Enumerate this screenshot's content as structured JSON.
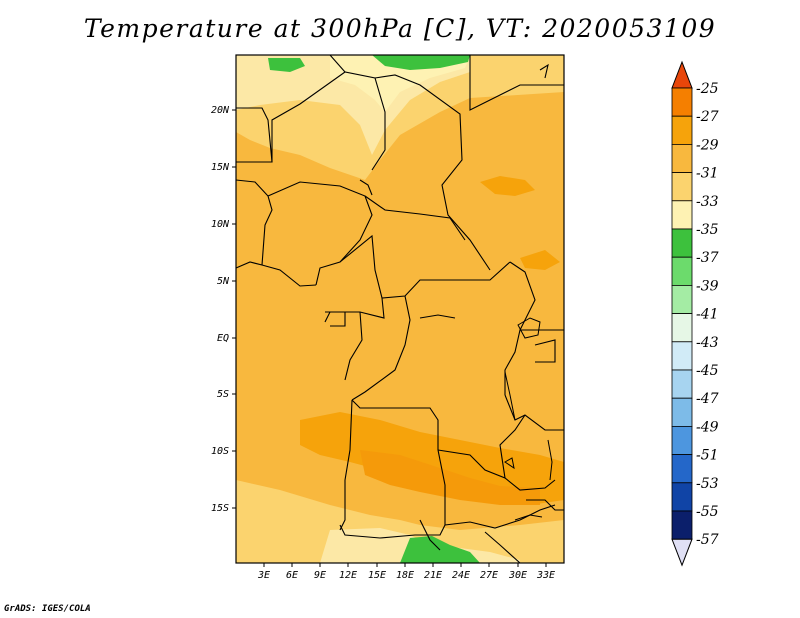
{
  "title": "Temperature at 300hPa [C], VT: 2020053109",
  "credit": "GrADS: IGES/COLA",
  "map": {
    "lat_labels": [
      "20N",
      "15N",
      "10N",
      "5N",
      "EQ",
      "5S",
      "10S",
      "15S"
    ],
    "lon_labels": [
      "3E",
      "6E",
      "9E",
      "12E",
      "15E",
      "18E",
      "21E",
      "24E",
      "27E",
      "30E",
      "33E"
    ]
  },
  "colorbar": {
    "labels": [
      "-25",
      "-27",
      "-29",
      "-31",
      "-33",
      "-35",
      "-37",
      "-39",
      "-41",
      "-43",
      "-45",
      "-47",
      "-49",
      "-51",
      "-53",
      "-55",
      "-57"
    ],
    "colors": [
      "#e8460a",
      "#f57f00",
      "#f6a30b",
      "#f8b83e",
      "#fbd36e",
      "#fef2b3",
      "#3dc13d",
      "#6cdb6c",
      "#a4eca4",
      "#e6f7e6",
      "#d1ebf7",
      "#a7d4f0",
      "#7dbbe8",
      "#4d96df",
      "#2467c9",
      "#1044a6",
      "#0b1f6b",
      "#e0e0f5"
    ]
  }
}
